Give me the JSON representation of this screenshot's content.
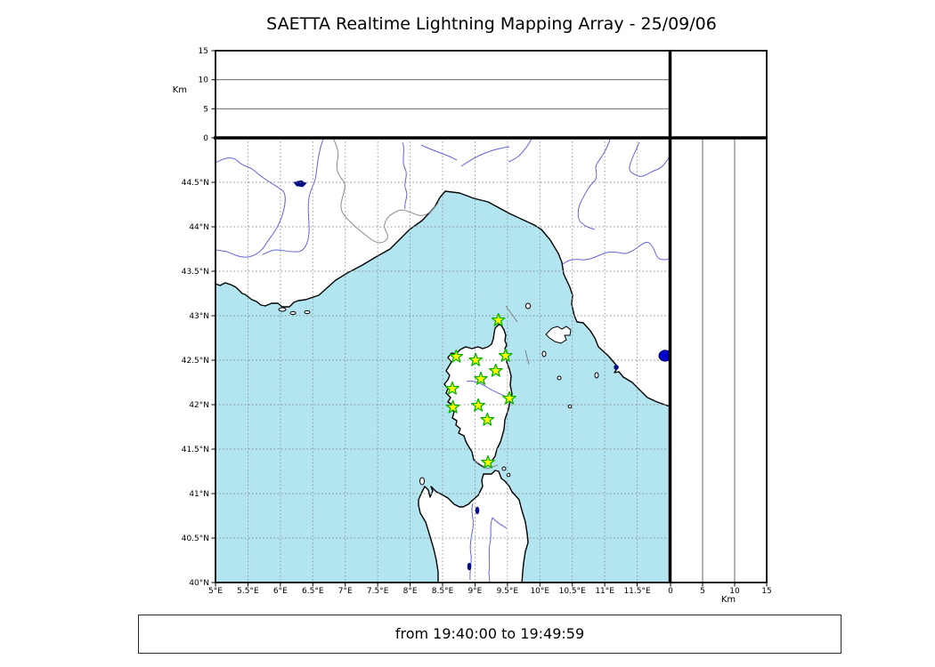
{
  "title": "SAETTA Realtime Lightning Mapping Array - 25/09/06",
  "footer": {
    "time_range": "from 19:40:00 to 19:49:59"
  },
  "colors": {
    "sea": "#b3e5f0",
    "land": "#ffffff",
    "coast": "#000000",
    "river": "#6363dd",
    "country_border": "#8a8a8a",
    "grid": "#8c8c8c",
    "panel_line": "#555555",
    "star_fill": "#ffff00",
    "star_stroke": "#00b400",
    "event_dot": "#0000cc",
    "lake": "#000d85",
    "frame": "#000000"
  },
  "chart_data": {
    "type": "scatter",
    "title": "SAETTA Realtime Lightning Mapping Array - 25/09/06",
    "time_window": "from 19:40:00 to 19:49:59",
    "map_panel": {
      "lon_range_deg_e": [
        5,
        12
      ],
      "lat_range_deg_n": [
        40,
        45
      ],
      "lon_ticks": [
        5,
        5.5,
        6,
        6.5,
        7,
        7.5,
        8,
        8.5,
        9,
        9.5,
        10,
        10.5,
        11,
        11.5
      ],
      "lon_tick_labels": [
        "5°E",
        "5.5°E",
        "6°E",
        "6.5°E",
        "7°E",
        "7.5°E",
        "8°E",
        "8.5°E",
        "9°E",
        "9.5°E",
        "10°E",
        "10.5°E",
        "11°E",
        "11.5°E"
      ],
      "lat_ticks": [
        40,
        40.5,
        41,
        41.5,
        42,
        42.5,
        43,
        43.5,
        44,
        44.5
      ],
      "lat_tick_labels": [
        "40°N",
        "40.5°N",
        "41°N",
        "41.5°N",
        "42°N",
        "42.5°N",
        "43°N",
        "43.5°N",
        "44°N",
        "44.5°N"
      ],
      "grid_step_deg": 0.5,
      "stations_lon_lat": [
        [
          9.36,
          42.95
        ],
        [
          8.71,
          42.54
        ],
        [
          9.01,
          42.5
        ],
        [
          9.47,
          42.55
        ],
        [
          9.32,
          42.38
        ],
        [
          9.09,
          42.29
        ],
        [
          8.65,
          42.18
        ],
        [
          9.53,
          42.07
        ],
        [
          9.05,
          41.99
        ],
        [
          8.66,
          41.97
        ],
        [
          9.19,
          41.83
        ],
        [
          9.2,
          41.35
        ]
      ],
      "event_points_lon_lat": [
        [
          11.93,
          42.55
        ]
      ]
    },
    "altitude_panels": {
      "axis_label": "Km",
      "ticks": [
        0,
        5,
        10,
        15
      ],
      "inner_gridlines": [
        5,
        10
      ],
      "range_km": [
        0,
        15
      ]
    }
  }
}
